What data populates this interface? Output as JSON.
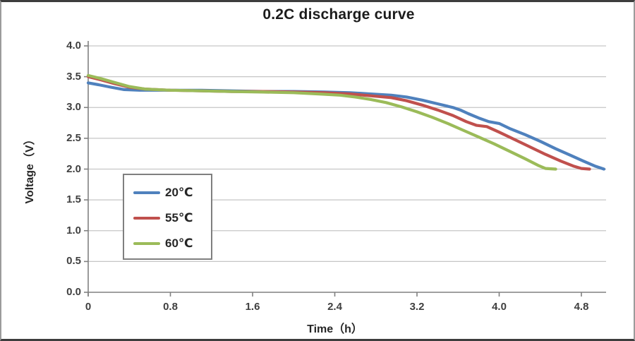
{
  "chart_data": {
    "type": "line",
    "title": "0.2C discharge curve",
    "xlabel": "Time（h）",
    "ylabel": "Voltage（V）",
    "xlim": [
      0,
      5.05
    ],
    "ylim": [
      0,
      4.0
    ],
    "grid": "horizontal",
    "legend_position": "inside-left",
    "xticks": [
      {
        "label": "0",
        "value": 0
      },
      {
        "label": "0.8",
        "value": 0.8
      },
      {
        "label": "1.6",
        "value": 1.6
      },
      {
        "label": "2.4",
        "value": 2.4
      },
      {
        "label": "3.2",
        "value": 3.2
      },
      {
        "label": "4.0",
        "value": 4.0
      },
      {
        "label": "4.8",
        "value": 4.8
      }
    ],
    "yticks": [
      {
        "label": "0.0",
        "value": 0.0
      },
      {
        "label": "0.5",
        "value": 0.5
      },
      {
        "label": "1.0",
        "value": 1.0
      },
      {
        "label": "1.5",
        "value": 1.5
      },
      {
        "label": "2.0",
        "value": 2.0
      },
      {
        "label": "2.5",
        "value": 2.5
      },
      {
        "label": "3.0",
        "value": 3.0
      },
      {
        "label": "3.5",
        "value": 3.5
      },
      {
        "label": "4.0",
        "value": 4.0
      }
    ],
    "colors": {
      "series_blue": "#4F81BD",
      "series_red": "#C0504D",
      "series_green": "#9BBB59",
      "gridline": "#C6C6C6",
      "axis": "#808080",
      "tick_text": "#3F3F3F",
      "title_text": "#1C1C1C"
    },
    "series": [
      {
        "name": "20℃",
        "color": "#4F81BD",
        "points": [
          [
            0,
            3.4
          ],
          [
            0.1,
            3.37
          ],
          [
            0.22,
            3.33
          ],
          [
            0.35,
            3.29
          ],
          [
            0.5,
            3.28
          ],
          [
            0.8,
            3.28
          ],
          [
            1.1,
            3.28
          ],
          [
            1.4,
            3.27
          ],
          [
            1.7,
            3.26
          ],
          [
            2.0,
            3.26
          ],
          [
            2.3,
            3.25
          ],
          [
            2.55,
            3.24
          ],
          [
            2.75,
            3.22
          ],
          [
            2.95,
            3.2
          ],
          [
            3.1,
            3.17
          ],
          [
            3.25,
            3.12
          ],
          [
            3.4,
            3.06
          ],
          [
            3.55,
            3.0
          ],
          [
            3.62,
            2.96
          ],
          [
            3.7,
            2.9
          ],
          [
            3.8,
            2.83
          ],
          [
            3.9,
            2.77
          ],
          [
            4.0,
            2.74
          ],
          [
            4.1,
            2.66
          ],
          [
            4.25,
            2.56
          ],
          [
            4.4,
            2.45
          ],
          [
            4.55,
            2.33
          ],
          [
            4.7,
            2.22
          ],
          [
            4.82,
            2.13
          ],
          [
            4.93,
            2.05
          ],
          [
            5.02,
            2.0
          ]
        ]
      },
      {
        "name": "55℃",
        "color": "#C0504D",
        "points": [
          [
            0,
            3.5
          ],
          [
            0.12,
            3.45
          ],
          [
            0.25,
            3.39
          ],
          [
            0.4,
            3.33
          ],
          [
            0.55,
            3.3
          ],
          [
            0.8,
            3.28
          ],
          [
            1.1,
            3.27
          ],
          [
            1.4,
            3.26
          ],
          [
            1.7,
            3.26
          ],
          [
            2.0,
            3.25
          ],
          [
            2.3,
            3.24
          ],
          [
            2.55,
            3.22
          ],
          [
            2.75,
            3.19
          ],
          [
            2.95,
            3.16
          ],
          [
            3.1,
            3.11
          ],
          [
            3.25,
            3.04
          ],
          [
            3.4,
            2.96
          ],
          [
            3.55,
            2.87
          ],
          [
            3.68,
            2.77
          ],
          [
            3.78,
            2.71
          ],
          [
            3.88,
            2.69
          ],
          [
            4.0,
            2.6
          ],
          [
            4.15,
            2.48
          ],
          [
            4.3,
            2.36
          ],
          [
            4.45,
            2.24
          ],
          [
            4.6,
            2.13
          ],
          [
            4.72,
            2.05
          ],
          [
            4.8,
            2.01
          ],
          [
            4.88,
            2.0
          ]
        ]
      },
      {
        "name": "60℃",
        "color": "#9BBB59",
        "points": [
          [
            0,
            3.52
          ],
          [
            0.12,
            3.47
          ],
          [
            0.25,
            3.41
          ],
          [
            0.4,
            3.34
          ],
          [
            0.55,
            3.3
          ],
          [
            0.8,
            3.28
          ],
          [
            1.1,
            3.27
          ],
          [
            1.4,
            3.26
          ],
          [
            1.7,
            3.25
          ],
          [
            2.0,
            3.24
          ],
          [
            2.25,
            3.22
          ],
          [
            2.45,
            3.2
          ],
          [
            2.6,
            3.17
          ],
          [
            2.75,
            3.13
          ],
          [
            2.9,
            3.08
          ],
          [
            3.05,
            3.01
          ],
          [
            3.2,
            2.93
          ],
          [
            3.35,
            2.84
          ],
          [
            3.5,
            2.74
          ],
          [
            3.65,
            2.63
          ],
          [
            3.8,
            2.52
          ],
          [
            3.95,
            2.41
          ],
          [
            4.1,
            2.29
          ],
          [
            4.25,
            2.17
          ],
          [
            4.38,
            2.06
          ],
          [
            4.45,
            2.01
          ],
          [
            4.55,
            2.0
          ]
        ]
      }
    ]
  }
}
